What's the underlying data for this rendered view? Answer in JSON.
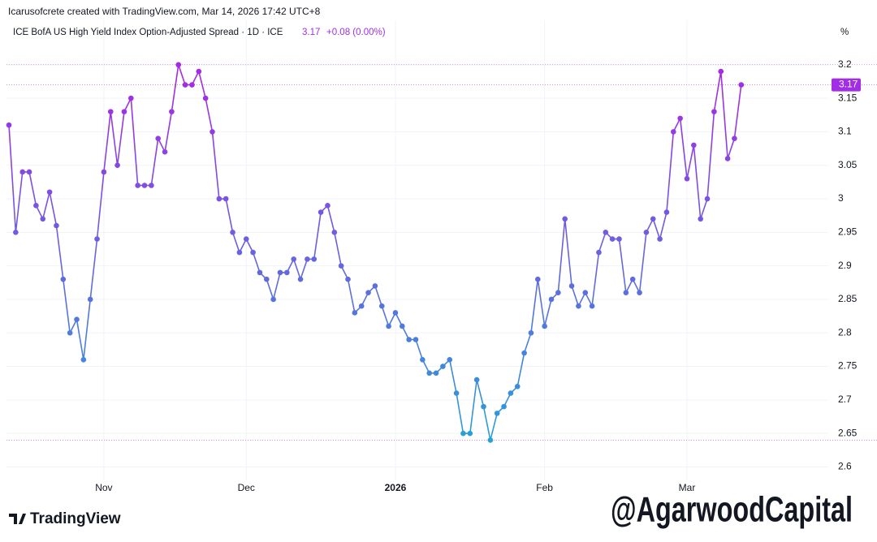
{
  "header": {
    "credit": "Icarusofcrete created with TradingView.com, Mar 14, 2026 17:42 UTC+8",
    "symbol": "ICE BofA US High Yield Index Option-Adjusted Spread · 1D · ICE",
    "change": "+0.08 (0.00%)",
    "unit": "%"
  },
  "footer": {
    "logo": "TradingView",
    "watermark": "@AgarwoodCapital"
  },
  "chart_data": {
    "type": "line",
    "categories": [
      null,
      null,
      null,
      null,
      null,
      null,
      null,
      null,
      null,
      null,
      null,
      null,
      null,
      null,
      "Nov",
      null,
      null,
      null,
      null,
      null,
      null,
      null,
      null,
      null,
      null,
      null,
      null,
      null,
      null,
      null,
      null,
      null,
      null,
      null,
      null,
      "Dec",
      null,
      null,
      null,
      null,
      null,
      null,
      null,
      null,
      null,
      null,
      null,
      null,
      null,
      null,
      null,
      null,
      null,
      null,
      null,
      null,
      null,
      "2026",
      null,
      null,
      null,
      null,
      null,
      null,
      null,
      null,
      null,
      null,
      null,
      null,
      null,
      null,
      null,
      null,
      null,
      null,
      null,
      null,
      null,
      "Feb",
      null,
      null,
      null,
      null,
      null,
      null,
      null,
      null,
      null,
      null,
      null,
      null,
      null,
      null,
      null,
      null,
      null,
      null,
      null,
      null,
      "Mar",
      null,
      null,
      null,
      null,
      null,
      null,
      null,
      null
    ],
    "values": [
      3.11,
      2.95,
      3.04,
      3.04,
      2.99,
      2.97,
      3.01,
      2.96,
      2.88,
      2.8,
      2.82,
      2.76,
      2.85,
      2.94,
      3.04,
      3.13,
      3.05,
      3.13,
      3.15,
      3.02,
      3.02,
      3.02,
      3.09,
      3.07,
      3.13,
      3.2,
      3.17,
      3.17,
      3.19,
      3.15,
      3.1,
      3,
      3,
      2.95,
      2.92,
      2.94,
      2.92,
      2.89,
      2.88,
      2.85,
      2.89,
      2.89,
      2.91,
      2.88,
      2.91,
      2.91,
      2.98,
      2.99,
      2.95,
      2.9,
      2.88,
      2.83,
      2.84,
      2.86,
      2.87,
      2.84,
      2.81,
      2.83,
      2.81,
      2.79,
      2.79,
      2.76,
      2.74,
      2.74,
      2.75,
      2.76,
      2.71,
      2.65,
      2.65,
      2.73,
      2.69,
      2.64,
      2.68,
      2.69,
      2.71,
      2.72,
      2.77,
      2.8,
      2.88,
      2.81,
      2.85,
      2.86,
      2.97,
      2.87,
      2.84,
      2.86,
      2.84,
      2.92,
      2.95,
      2.94,
      2.94,
      2.86,
      2.88,
      2.86,
      2.95,
      2.97,
      2.94,
      2.98,
      3.1,
      3.12,
      3.03,
      3.08,
      2.97,
      3,
      3.13,
      3.19,
      3.06,
      3.09,
      3.17
    ],
    "gradient": [
      "#a827e6",
      "#2a9fd8"
    ],
    "ylim": [
      2.58,
      3.23
    ],
    "yticks": [
      2.6,
      2.65,
      2.7,
      2.75,
      2.8,
      2.85,
      2.9,
      2.95,
      3,
      3.05,
      3.1,
      3.15,
      3.2
    ],
    "grid": true
  }
}
